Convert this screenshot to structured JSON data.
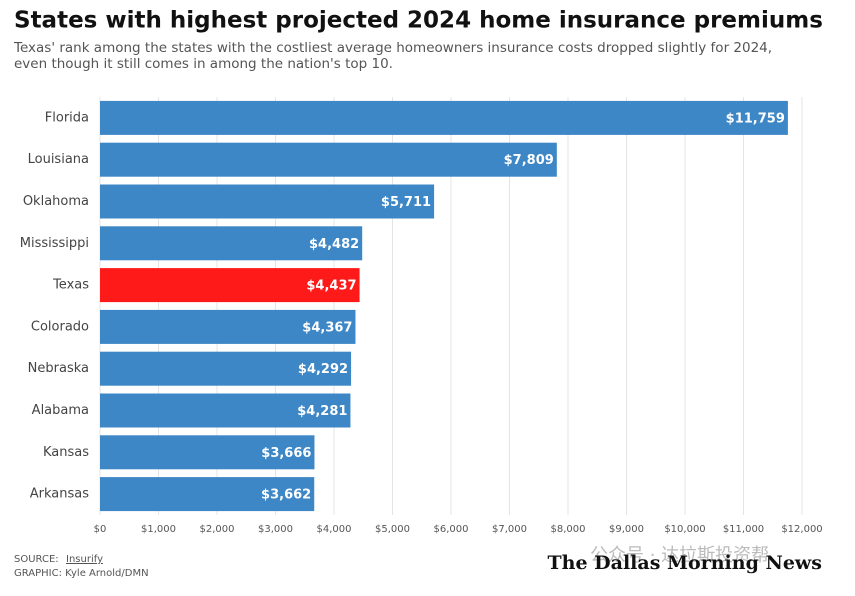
{
  "chart_data": {
    "type": "hbar",
    "title": "States with highest projected 2024 home insurance premiums",
    "subtitle": "Texas' rank among the states with the costliest average homeowners insurance costs dropped slightly for 2024, even though it still comes in among the nation's top 10.",
    "categories": [
      "Florida",
      "Louisiana",
      "Oklahoma",
      "Mississippi",
      "Texas",
      "Colorado",
      "Nebraska",
      "Alabama",
      "Kansas",
      "Arkansas"
    ],
    "values": [
      11759,
      7809,
      5711,
      4482,
      4437,
      4367,
      4292,
      4281,
      3666,
      3662
    ],
    "value_labels": [
      "$11,759",
      "$7,809",
      "$5,711",
      "$4,482",
      "$4,437",
      "$4,367",
      "$4,292",
      "$4,281",
      "$3,666",
      "$3,662"
    ],
    "colors": [
      "#3d87c6",
      "#3d87c6",
      "#3d87c6",
      "#3d87c6",
      "#ff1a1a",
      "#3d87c6",
      "#3d87c6",
      "#3d87c6",
      "#3d87c6",
      "#3d87c6"
    ],
    "xlim": [
      0,
      12000
    ],
    "xticks": [
      {
        "value": 0,
        "label": "$0"
      },
      {
        "value": 1000,
        "label": "$1,000"
      },
      {
        "value": 2000,
        "label": "$2,000"
      },
      {
        "value": 3000,
        "label": "$3,000"
      },
      {
        "value": 4000,
        "label": "$4,000"
      },
      {
        "value": 5000,
        "label": "$5,000"
      },
      {
        "value": 6000,
        "label": "$6,000"
      },
      {
        "value": 7000,
        "label": "$7,000"
      },
      {
        "value": 8000,
        "label": "$8,000"
      },
      {
        "value": 9000,
        "label": "$9,000"
      },
      {
        "value": 10000,
        "label": "$10,000"
      },
      {
        "value": 11000,
        "label": "$11,000"
      },
      {
        "value": 12000,
        "label": "$12,000"
      }
    ],
    "grid": true
  },
  "source": {
    "label": "SOURCE:",
    "name": "Insurify"
  },
  "credit": "GRAPHIC: Kyle Arnold/DMN",
  "logo": "The Dallas Morning News",
  "watermark": "公众号 · 达拉斯投资帮"
}
